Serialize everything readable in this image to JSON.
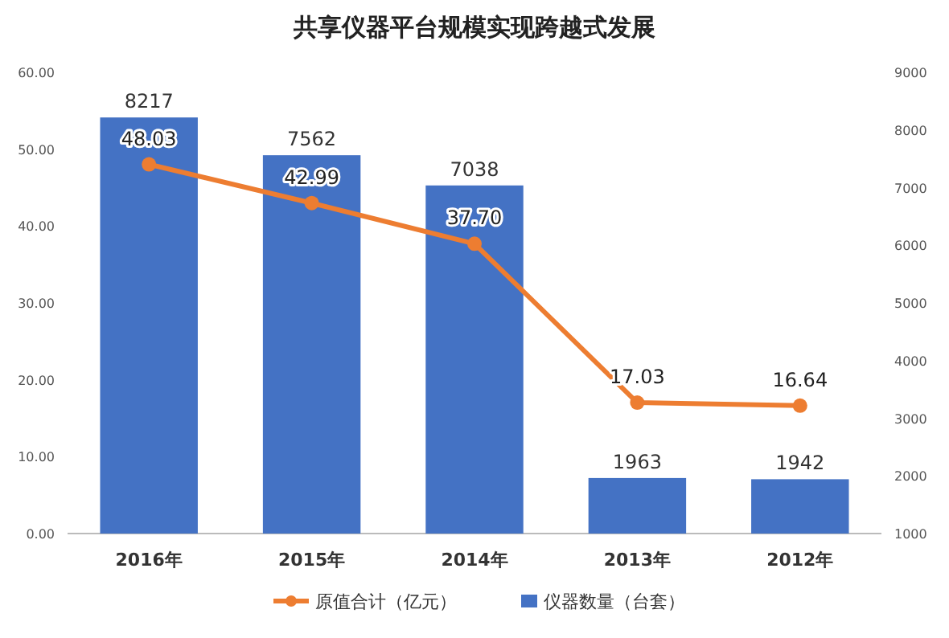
{
  "chart_data": {
    "type": "bar",
    "title": "共享仪器平台规模实现跨越式发展",
    "categories": [
      "2016年",
      "2015年",
      "2014年",
      "2013年",
      "2012年"
    ],
    "series": [
      {
        "name": "原值合计（亿元）",
        "type": "line",
        "axis": "y2",
        "color": "#ed7d31",
        "marker": "circle",
        "values": [
          48.03,
          42.99,
          37.7,
          17.03,
          16.64
        ],
        "value_labels": [
          "48.03",
          "42.99",
          "37.70",
          "17.03",
          "16.64"
        ]
      },
      {
        "name": "仪器数量（台套）",
        "color": "#4472c4",
        "values": [
          8217,
          7562,
          7038,
          1963,
          1942
        ],
        "value_labels": [
          "8217",
          "7562",
          "7038",
          "1963",
          "1942"
        ]
      }
    ],
    "ylim": [
      1000,
      9000
    ],
    "yticks": [
      1000,
      2000,
      3000,
      4000,
      5000,
      6000,
      7000,
      8000,
      9000
    ],
    "y2lim": [
      0,
      60
    ],
    "y2ticks": [
      {
        "value": 0,
        "label": "0.00"
      },
      {
        "value": 10,
        "label": "10.00"
      },
      {
        "value": 20,
        "label": "20.00"
      },
      {
        "value": 30,
        "label": "30.00"
      },
      {
        "value": 40,
        "label": "40.00"
      },
      {
        "value": 50,
        "label": "50.00"
      },
      {
        "value": 60,
        "label": "60.00"
      }
    ],
    "legend": "bottom"
  }
}
